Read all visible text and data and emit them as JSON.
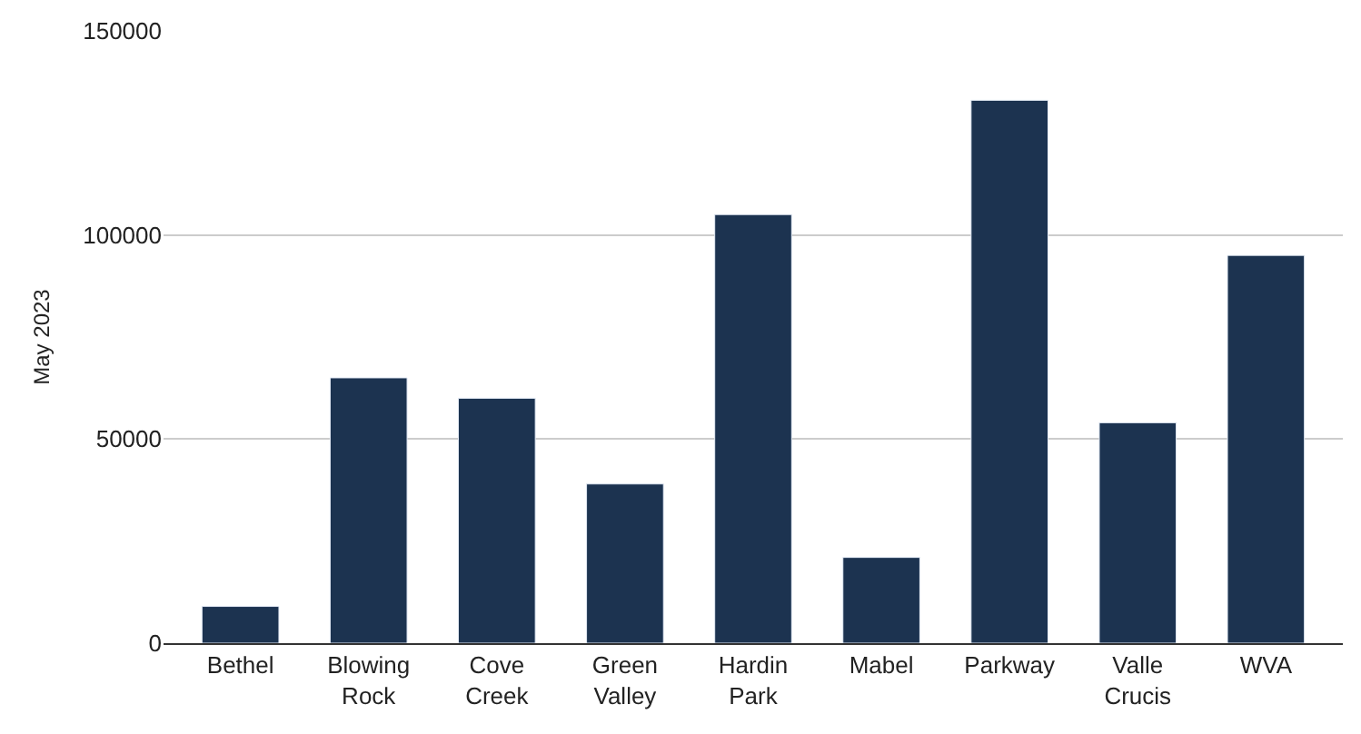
{
  "chart_data": {
    "type": "bar",
    "ylabel": "May 2023",
    "categories": [
      "Bethel",
      "Blowing Rock",
      "Cove Creek",
      "Green Valley",
      "Hardin Park",
      "Mabel",
      "Parkway",
      "Valle Crucis",
      "WVA"
    ],
    "values": [
      9000,
      65000,
      60000,
      39000,
      105000,
      21000,
      133000,
      54000,
      95000
    ],
    "color": "#1c3350",
    "ylim": [
      0,
      150000
    ],
    "yticks": [
      0,
      50000,
      100000,
      150000
    ],
    "grid": "y"
  }
}
